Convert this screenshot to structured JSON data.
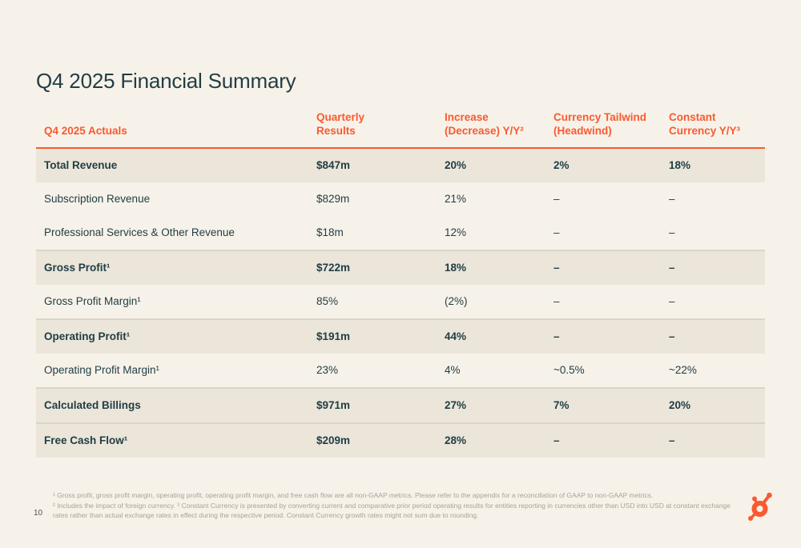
{
  "slide": {
    "title": "Q4 2025 Financial Summary",
    "page_number": "10"
  },
  "colors": {
    "background": "#F7F2E9",
    "accent_orange": "#F95A31",
    "dark_text": "#213E45",
    "row_shaded": "#EBE5DA",
    "footnote_gray": "#A8A298"
  },
  "table": {
    "columns": [
      {
        "label": "Q4 2025 Actuals"
      },
      {
        "label": "Quarterly\nResults"
      },
      {
        "label": "Increase\n(Decrease) Y/Y²"
      },
      {
        "label": "Currency Tailwind\n(Headwind)"
      },
      {
        "label": "Constant\nCurrency Y/Y³"
      }
    ],
    "rows": [
      {
        "label": "Total Revenue",
        "bold": true,
        "shaded": true,
        "divider": false,
        "values": [
          "$847m",
          "20%",
          "2%",
          "18%"
        ]
      },
      {
        "label": "Subscription Revenue",
        "bold": false,
        "shaded": false,
        "divider": false,
        "values": [
          "$829m",
          "21%",
          "–",
          "–"
        ]
      },
      {
        "label": "Professional Services & Other Revenue",
        "bold": false,
        "shaded": false,
        "divider": false,
        "values": [
          "$18m",
          "12%",
          "–",
          "–"
        ]
      },
      {
        "label": "Gross Profit¹",
        "bold": true,
        "shaded": true,
        "divider": true,
        "values": [
          "$722m",
          "18%",
          "–",
          "–"
        ]
      },
      {
        "label": "Gross Profit Margin¹",
        "bold": false,
        "shaded": false,
        "divider": false,
        "values": [
          "85%",
          "(2%)",
          "–",
          "–"
        ]
      },
      {
        "label": "Operating Profit¹",
        "bold": true,
        "shaded": true,
        "divider": true,
        "values": [
          "$191m",
          "44%",
          "–",
          "–"
        ]
      },
      {
        "label": "Operating Profit Margin¹",
        "bold": false,
        "shaded": false,
        "divider": false,
        "values": [
          "23%",
          "4%",
          "~0.5%",
          "~22%"
        ]
      },
      {
        "label": "Calculated Billings",
        "bold": true,
        "shaded": true,
        "divider": true,
        "values": [
          "$971m",
          "27%",
          "7%",
          "20%"
        ]
      },
      {
        "label": "Free Cash Flow¹",
        "bold": true,
        "shaded": true,
        "divider": true,
        "values": [
          "$209m",
          "28%",
          "–",
          "–"
        ]
      }
    ]
  },
  "footnotes": {
    "lines": [
      "¹ Gross profit, gross profit margin, operating profit, operating profit margin, and free cash flow are all non-GAAP metrics. Please refer to the appendix for a reconciliation of GAAP to non-GAAP metrics.",
      "² Includes the impact of foreign currency. ³ Constant Currency is presented by converting current and comparative prior period operating results for entities reporting in currencies other than USD into USD at constant exchange",
      "rates rather than actual exchange rates in effect during the respective period. Constant Currency growth rates might not sum due to rounding."
    ]
  }
}
